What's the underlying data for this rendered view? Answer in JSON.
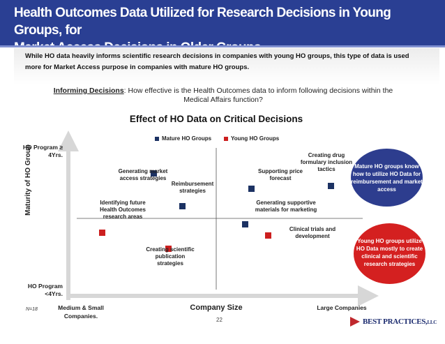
{
  "header": {
    "title_line1": "Health Outcomes Data Utilized for Research Decisions in Young Groups, for",
    "title_line2": "Market Access Decisions in Older Groups",
    "subtitle": "While HO data heavily informs scientific research decisions in companies with young HO groups,  this type of data is used more for Market Access purpose in companies with mature HO groups."
  },
  "question": {
    "label": "Informing Decisions",
    "text": ": How effective is the Health Outcomes data to inform following decisions within the Medical Affairs function?"
  },
  "footer": {
    "n_label": "N=18",
    "page_number": "22",
    "logo_text": "BEST PRACTICES,",
    "logo_suffix": "LLC"
  },
  "callouts": {
    "mature": "Mature HO groups know how to utilize HO Data for reimbursement and market access",
    "young": "Young HO groups utilize HO Data mostly to create clinical and scientific research strategies"
  },
  "colors": {
    "title_bg": "#2a3f93",
    "mature": "#1c3263",
    "young": "#cc1f1f",
    "mature_callout": "#2d3d8e",
    "young_callout": "#d42020"
  },
  "chart_data": {
    "type": "scatter",
    "title": "Effect of HO Data on Critical Decisions",
    "xlabel": "Company Size",
    "ylabel": "Maturity of HO Group",
    "x_tick_low": "Medium & Small Companies.",
    "x_tick_high": "Large Companies",
    "y_tick_high": "HO Program ≥ 4Yrs.",
    "y_tick_low": "HO Program <4Yrs.",
    "xlim": [
      0,
      100
    ],
    "ylim": [
      0,
      100
    ],
    "legend": [
      "Mature HO Groups",
      "Young HO Groups"
    ],
    "series": [
      {
        "name": "Mature HO Groups",
        "points": [
          {
            "label": "Generating market access strategies",
            "x": 27,
            "y": 82
          },
          {
            "label": "Reimbursement strategies",
            "x": 37,
            "y": 59
          },
          {
            "label": "Supporting price forecast",
            "x": 61,
            "y": 71
          },
          {
            "label": "Creating drug formulary inclusion tactics",
            "x": 89,
            "y": 73
          },
          {
            "label": "Generating supportive materials for marketing",
            "x": 59,
            "y": 46
          }
        ]
      },
      {
        "name": "Young HO Groups",
        "points": [
          {
            "label": "Identifying future Health Outcomes research areas",
            "x": 9,
            "y": 40
          },
          {
            "label": "Creating scientific publication strategies",
            "x": 32,
            "y": 29
          },
          {
            "label": "Clinical trials and development",
            "x": 67,
            "y": 38
          }
        ]
      }
    ]
  }
}
